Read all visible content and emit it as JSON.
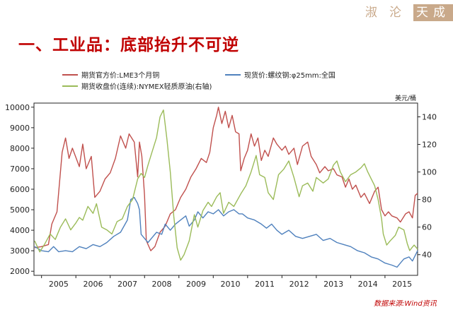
{
  "header": {
    "logo": {
      "text_a": "淑",
      "text_b": "沦",
      "text_c": "天",
      "text_d": "成"
    },
    "title": "一、工业品：底部抬升不可逆"
  },
  "source": "数据来源:Wind资讯",
  "colors": {
    "lme": "#c0504d",
    "rebar": "#4f81bd",
    "oil": "#9bbb59",
    "title": "#c00000",
    "logo": "#c9a98a"
  },
  "chart_data": {
    "type": "line",
    "title": "",
    "right_axis_unit": "美元/桶",
    "x_ticks": [
      "2005",
      "2006",
      "2007",
      "2008",
      "2009",
      "2010",
      "2011",
      "2012",
      "2013",
      "2014",
      "2015"
    ],
    "xlim": [
      2004.78,
      2015.95
    ],
    "left_ylim": [
      1800,
      10200
    ],
    "left_ticks": [
      "2000",
      "3000",
      "4000",
      "5000",
      "6000",
      "7000",
      "8000",
      "9000",
      "10000"
    ],
    "right_ylim": [
      25,
      150
    ],
    "right_ticks": [
      "40",
      "60",
      "80",
      "100",
      "120",
      "140"
    ],
    "grid": false,
    "legend_position": "top",
    "series": [
      {
        "name": "期货官方价:LME3个月铜",
        "axis": "left",
        "color": "#c0504d",
        "points": [
          [
            2004.8,
            3150
          ],
          [
            2005.0,
            3200
          ],
          [
            2005.2,
            3300
          ],
          [
            2005.3,
            4300
          ],
          [
            2005.45,
            4900
          ],
          [
            2005.6,
            7800
          ],
          [
            2005.7,
            8500
          ],
          [
            2005.8,
            7500
          ],
          [
            2005.9,
            8000
          ],
          [
            2006.1,
            7100
          ],
          [
            2006.2,
            8200
          ],
          [
            2006.3,
            7000
          ],
          [
            2006.45,
            7600
          ],
          [
            2006.55,
            5600
          ],
          [
            2006.7,
            5900
          ],
          [
            2006.85,
            6500
          ],
          [
            2007.0,
            6800
          ],
          [
            2007.15,
            7500
          ],
          [
            2007.3,
            8600
          ],
          [
            2007.45,
            8000
          ],
          [
            2007.55,
            8700
          ],
          [
            2007.7,
            8300
          ],
          [
            2007.8,
            6600
          ],
          [
            2007.85,
            8300
          ],
          [
            2007.92,
            7600
          ],
          [
            2008.0,
            5700
          ],
          [
            2008.05,
            3500
          ],
          [
            2008.1,
            3300
          ],
          [
            2008.18,
            3000
          ],
          [
            2008.3,
            3200
          ],
          [
            2008.45,
            3900
          ],
          [
            2008.6,
            4200
          ],
          [
            2008.75,
            4800
          ],
          [
            2008.9,
            5000
          ],
          [
            2009.05,
            5600
          ],
          [
            2009.2,
            6000
          ],
          [
            2009.35,
            6600
          ],
          [
            2009.5,
            7000
          ],
          [
            2009.65,
            7500
          ],
          [
            2009.8,
            7300
          ],
          [
            2009.9,
            7800
          ],
          [
            2010.0,
            9000
          ],
          [
            2010.1,
            9600
          ],
          [
            2010.15,
            10000
          ],
          [
            2010.25,
            9200
          ],
          [
            2010.35,
            9800
          ],
          [
            2010.45,
            9000
          ],
          [
            2010.55,
            9600
          ],
          [
            2010.65,
            8800
          ],
          [
            2010.75,
            8700
          ],
          [
            2010.8,
            6900
          ],
          [
            2010.9,
            7500
          ],
          [
            2011.0,
            7900
          ],
          [
            2011.1,
            8700
          ],
          [
            2011.2,
            8100
          ],
          [
            2011.3,
            8500
          ],
          [
            2011.4,
            7400
          ],
          [
            2011.5,
            7900
          ],
          [
            2011.6,
            7600
          ],
          [
            2011.75,
            8500
          ],
          [
            2011.85,
            8200
          ],
          [
            2012.0,
            7900
          ],
          [
            2012.1,
            8100
          ],
          [
            2012.2,
            7700
          ],
          [
            2012.35,
            8000
          ],
          [
            2012.45,
            7200
          ],
          [
            2012.6,
            8100
          ],
          [
            2012.75,
            8300
          ],
          [
            2012.85,
            7600
          ],
          [
            2013.0,
            7200
          ],
          [
            2013.1,
            6800
          ],
          [
            2013.25,
            7100
          ],
          [
            2013.35,
            6900
          ],
          [
            2013.5,
            7000
          ],
          [
            2013.6,
            6700
          ],
          [
            2013.75,
            6600
          ],
          [
            2013.85,
            6100
          ],
          [
            2013.95,
            6500
          ],
          [
            2014.05,
            6000
          ],
          [
            2014.15,
            6200
          ],
          [
            2014.3,
            5600
          ],
          [
            2014.4,
            5800
          ],
          [
            2014.55,
            5300
          ],
          [
            2014.7,
            5900
          ],
          [
            2014.8,
            6100
          ],
          [
            2014.9,
            5000
          ],
          [
            2015.0,
            4700
          ],
          [
            2015.1,
            4900
          ],
          [
            2015.2,
            4700
          ],
          [
            2015.35,
            4600
          ],
          [
            2015.45,
            4400
          ],
          [
            2015.6,
            4800
          ],
          [
            2015.7,
            4900
          ],
          [
            2015.8,
            4600
          ],
          [
            2015.88,
            5700
          ],
          [
            2015.95,
            5800
          ]
        ]
      },
      {
        "name": "现货价:螺纹钢:φ25mm:全国",
        "axis": "left",
        "color": "#4f81bd",
        "points": [
          [
            2004.8,
            3200
          ],
          [
            2005.0,
            3000
          ],
          [
            2005.2,
            2950
          ],
          [
            2005.35,
            3200
          ],
          [
            2005.5,
            2950
          ],
          [
            2005.7,
            3000
          ],
          [
            2005.9,
            2950
          ],
          [
            2006.1,
            3200
          ],
          [
            2006.3,
            3100
          ],
          [
            2006.5,
            3300
          ],
          [
            2006.7,
            3200
          ],
          [
            2006.9,
            3400
          ],
          [
            2007.1,
            3700
          ],
          [
            2007.3,
            3900
          ],
          [
            2007.5,
            4500
          ],
          [
            2007.6,
            5500
          ],
          [
            2007.7,
            5600
          ],
          [
            2007.8,
            5300
          ],
          [
            2007.85,
            5000
          ],
          [
            2007.9,
            3800
          ],
          [
            2008.0,
            3600
          ],
          [
            2008.1,
            3400
          ],
          [
            2008.2,
            3600
          ],
          [
            2008.35,
            3900
          ],
          [
            2008.5,
            3800
          ],
          [
            2008.6,
            4300
          ],
          [
            2008.75,
            4000
          ],
          [
            2008.9,
            4300
          ],
          [
            2009.05,
            4500
          ],
          [
            2009.2,
            4700
          ],
          [
            2009.3,
            4200
          ],
          [
            2009.45,
            4500
          ],
          [
            2009.55,
            4900
          ],
          [
            2009.7,
            4600
          ],
          [
            2009.85,
            4900
          ],
          [
            2010.0,
            4800
          ],
          [
            2010.15,
            5000
          ],
          [
            2010.3,
            4700
          ],
          [
            2010.45,
            4900
          ],
          [
            2010.6,
            5000
          ],
          [
            2010.75,
            4800
          ],
          [
            2010.85,
            4800
          ],
          [
            2011.0,
            4600
          ],
          [
            2011.2,
            4500
          ],
          [
            2011.4,
            4300
          ],
          [
            2011.55,
            4100
          ],
          [
            2011.7,
            4300
          ],
          [
            2011.85,
            4000
          ],
          [
            2012.0,
            3800
          ],
          [
            2012.2,
            4000
          ],
          [
            2012.4,
            3700
          ],
          [
            2012.6,
            3600
          ],
          [
            2012.8,
            3700
          ],
          [
            2013.0,
            3800
          ],
          [
            2013.2,
            3500
          ],
          [
            2013.4,
            3600
          ],
          [
            2013.6,
            3400
          ],
          [
            2013.8,
            3300
          ],
          [
            2014.0,
            3200
          ],
          [
            2014.2,
            3000
          ],
          [
            2014.4,
            2900
          ],
          [
            2014.6,
            2700
          ],
          [
            2014.8,
            2600
          ],
          [
            2015.0,
            2400
          ],
          [
            2015.2,
            2300
          ],
          [
            2015.35,
            2200
          ],
          [
            2015.45,
            2400
          ],
          [
            2015.55,
            2600
          ],
          [
            2015.7,
            2700
          ],
          [
            2015.8,
            2500
          ],
          [
            2015.95,
            3000
          ]
        ]
      },
      {
        "name": "期货收盘价(连续):NYMEX轻质原油(右轴)",
        "axis": "right",
        "color": "#9bbb59",
        "points": [
          [
            2004.8,
            50
          ],
          [
            2004.95,
            42
          ],
          [
            2005.1,
            48
          ],
          [
            2005.25,
            55
          ],
          [
            2005.4,
            51
          ],
          [
            2005.55,
            60
          ],
          [
            2005.7,
            66
          ],
          [
            2005.85,
            58
          ],
          [
            2006.0,
            63
          ],
          [
            2006.1,
            67
          ],
          [
            2006.2,
            65
          ],
          [
            2006.35,
            75
          ],
          [
            2006.5,
            70
          ],
          [
            2006.6,
            77
          ],
          [
            2006.75,
            60
          ],
          [
            2006.9,
            58
          ],
          [
            2007.05,
            55
          ],
          [
            2007.2,
            64
          ],
          [
            2007.35,
            66
          ],
          [
            2007.5,
            75
          ],
          [
            2007.65,
            80
          ],
          [
            2007.8,
            95
          ],
          [
            2007.9,
            99
          ],
          [
            2008.0,
            96
          ],
          [
            2008.1,
            105
          ],
          [
            2008.2,
            113
          ],
          [
            2008.35,
            125
          ],
          [
            2008.45,
            140
          ],
          [
            2008.55,
            145
          ],
          [
            2008.65,
            124
          ],
          [
            2008.75,
            100
          ],
          [
            2008.85,
            68
          ],
          [
            2008.95,
            45
          ],
          [
            2009.05,
            36
          ],
          [
            2009.15,
            40
          ],
          [
            2009.3,
            50
          ],
          [
            2009.45,
            69
          ],
          [
            2009.55,
            60
          ],
          [
            2009.7,
            72
          ],
          [
            2009.85,
            78
          ],
          [
            2009.95,
            75
          ],
          [
            2010.1,
            82
          ],
          [
            2010.2,
            85
          ],
          [
            2010.3,
            70
          ],
          [
            2010.45,
            78
          ],
          [
            2010.6,
            75
          ],
          [
            2010.8,
            84
          ],
          [
            2010.95,
            90
          ],
          [
            2011.1,
            100
          ],
          [
            2011.25,
            112
          ],
          [
            2011.35,
            98
          ],
          [
            2011.5,
            96
          ],
          [
            2011.6,
            85
          ],
          [
            2011.75,
            80
          ],
          [
            2011.9,
            98
          ],
          [
            2012.05,
            102
          ],
          [
            2012.2,
            108
          ],
          [
            2012.35,
            96
          ],
          [
            2012.5,
            82
          ],
          [
            2012.6,
            90
          ],
          [
            2012.75,
            92
          ],
          [
            2012.9,
            86
          ],
          [
            2013.0,
            96
          ],
          [
            2013.2,
            92
          ],
          [
            2013.35,
            95
          ],
          [
            2013.5,
            105
          ],
          [
            2013.6,
            108
          ],
          [
            2013.7,
            100
          ],
          [
            2013.85,
            93
          ],
          [
            2014.0,
            98
          ],
          [
            2014.15,
            100
          ],
          [
            2014.3,
            103
          ],
          [
            2014.4,
            106
          ],
          [
            2014.5,
            100
          ],
          [
            2014.6,
            95
          ],
          [
            2014.7,
            90
          ],
          [
            2014.8,
            80
          ],
          [
            2014.9,
            66
          ],
          [
            2014.95,
            55
          ],
          [
            2015.05,
            47
          ],
          [
            2015.15,
            50
          ],
          [
            2015.3,
            54
          ],
          [
            2015.4,
            60
          ],
          [
            2015.55,
            58
          ],
          [
            2015.65,
            48
          ],
          [
            2015.72,
            43
          ],
          [
            2015.78,
            45
          ],
          [
            2015.85,
            47
          ],
          [
            2015.95,
            44
          ]
        ]
      }
    ]
  }
}
